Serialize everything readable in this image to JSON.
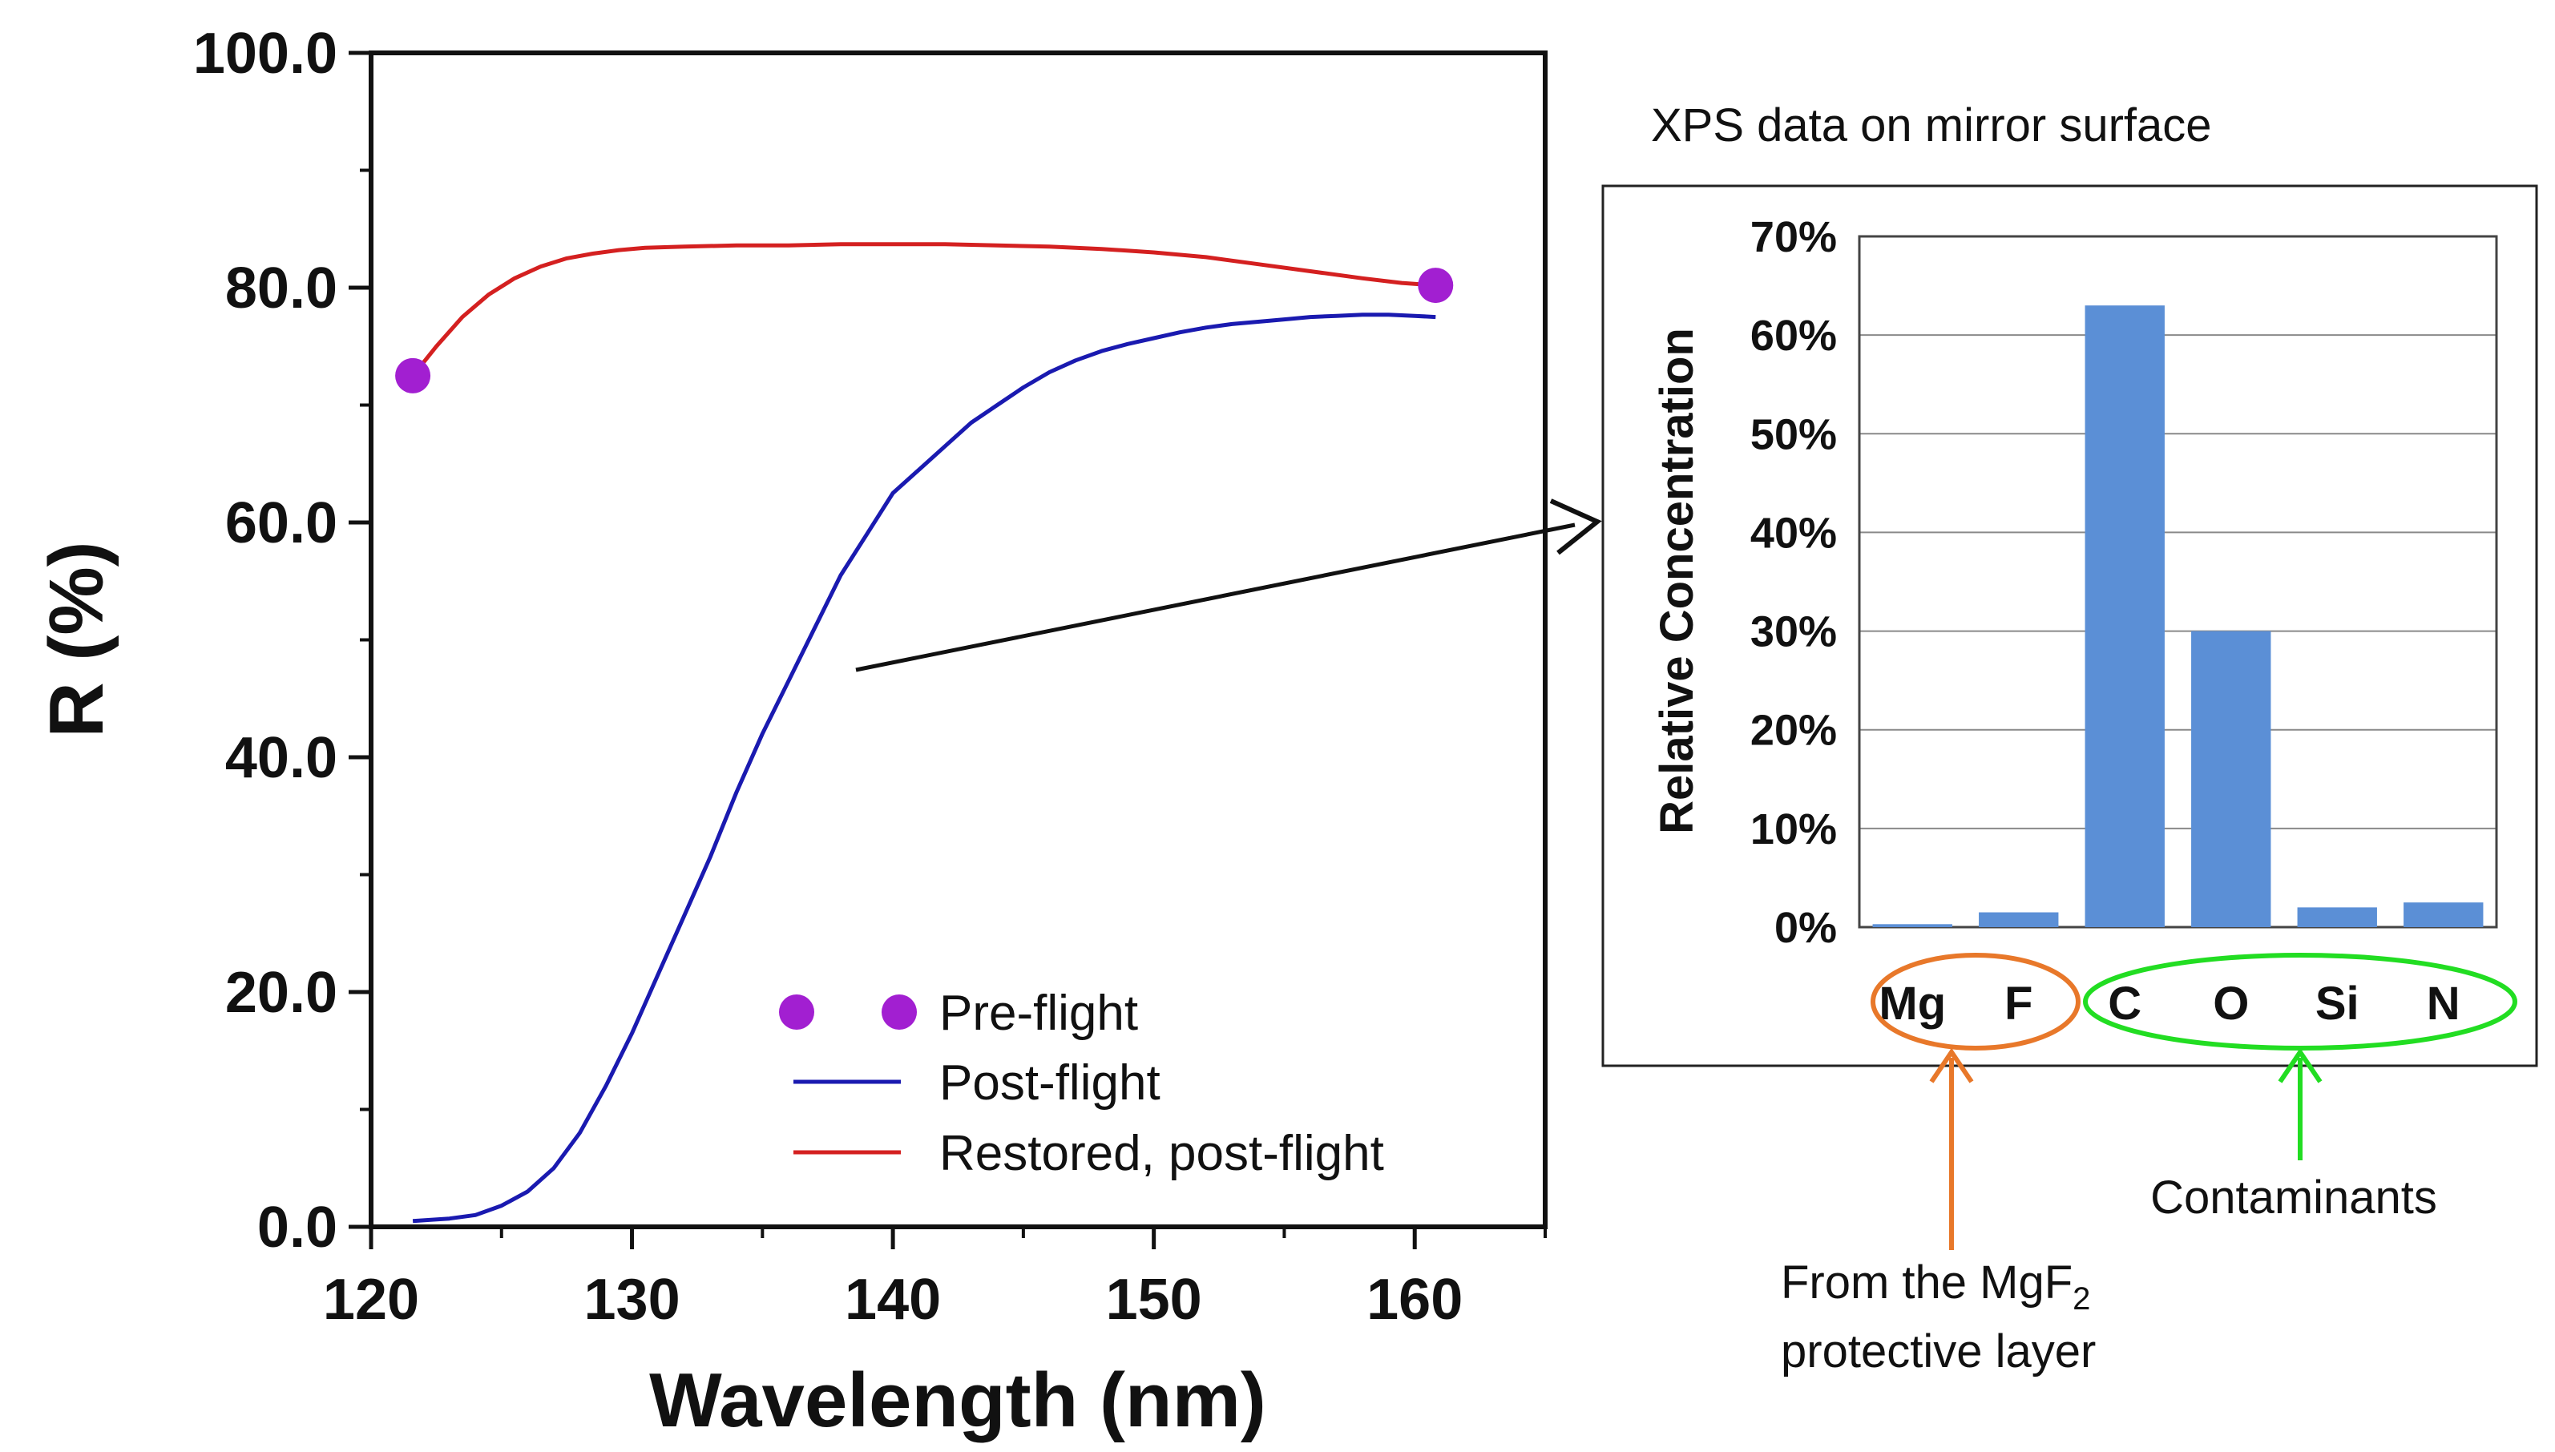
{
  "colors": {
    "preflight": "#a21fd1",
    "postflight": "#1a1ab0",
    "restored": "#d42020",
    "bar": "#5b8fd6",
    "mgf_group": "#e8782a",
    "contam_group": "#22dd22"
  },
  "chart_data": [
    {
      "type": "line",
      "xlabel": "Wavelength (nm)",
      "ylabel": "R (%)",
      "xlim": [
        120,
        165
      ],
      "ylim": [
        0,
        100
      ],
      "xticks": [
        "120",
        "130",
        "140",
        "150",
        "160"
      ],
      "yticks": [
        "0.0",
        "20.0",
        "40.0",
        "60.0",
        "80.0",
        "100.0"
      ],
      "series": [
        {
          "name": "Pre-flight",
          "kind": "points",
          "x": [
            121.6,
            160.8
          ],
          "y": [
            72.5,
            80.2
          ]
        },
        {
          "name": "Post-flight",
          "kind": "line",
          "x": [
            121.6,
            123,
            124,
            125,
            126,
            127,
            128,
            129,
            130,
            131,
            132,
            133,
            134,
            135,
            136,
            137,
            138,
            139,
            140,
            141,
            142,
            143,
            144,
            145,
            146,
            147,
            148,
            149,
            150,
            151,
            152,
            153,
            154,
            155,
            156,
            157,
            158,
            159,
            160,
            160.8
          ],
          "y": [
            0.5,
            0.7,
            1.0,
            1.8,
            3.0,
            5.0,
            8.0,
            12.0,
            16.5,
            21.5,
            26.5,
            31.5,
            37.0,
            42.0,
            46.5,
            51.0,
            55.5,
            59.0,
            62.5,
            64.5,
            66.5,
            68.5,
            70.0,
            71.5,
            72.8,
            73.8,
            74.6,
            75.2,
            75.7,
            76.2,
            76.6,
            76.9,
            77.1,
            77.3,
            77.5,
            77.6,
            77.7,
            77.7,
            77.6,
            77.5
          ]
        },
        {
          "name": "Restored, post-flight",
          "kind": "line",
          "x": [
            121.6,
            122.5,
            123.5,
            124.5,
            125.5,
            126.5,
            127.5,
            128.5,
            129.5,
            130.5,
            132,
            134,
            136,
            138,
            140,
            142,
            144,
            146,
            148,
            150,
            152,
            154,
            156,
            158,
            159.5,
            160.8
          ],
          "y": [
            72.5,
            75.0,
            77.5,
            79.4,
            80.8,
            81.8,
            82.5,
            82.9,
            83.2,
            83.4,
            83.5,
            83.6,
            83.6,
            83.7,
            83.7,
            83.7,
            83.6,
            83.5,
            83.3,
            83.0,
            82.6,
            82.0,
            81.4,
            80.8,
            80.4,
            80.2
          ]
        }
      ],
      "legend": {
        "position": "bottom-right",
        "entries": [
          "Pre-flight",
          "Post-flight",
          "Restored, post-flight"
        ]
      }
    },
    {
      "type": "bar",
      "title": "XPS data on mirror surface",
      "ylabel": "Relative Concentration",
      "ylim": [
        0,
        70
      ],
      "yticks": [
        "0%",
        "10%",
        "20%",
        "30%",
        "40%",
        "50%",
        "60%",
        "70%"
      ],
      "categories": [
        "Mg",
        "F",
        "C",
        "O",
        "Si",
        "N"
      ],
      "values": [
        0.3,
        1.5,
        63.0,
        30.0,
        2.0,
        2.5
      ]
    }
  ],
  "annotations": {
    "mgf_source_line1": "From the MgF",
    "mgf_source_sub": "2",
    "mgf_source_line2": "protective layer",
    "contaminants": "Contaminants"
  }
}
